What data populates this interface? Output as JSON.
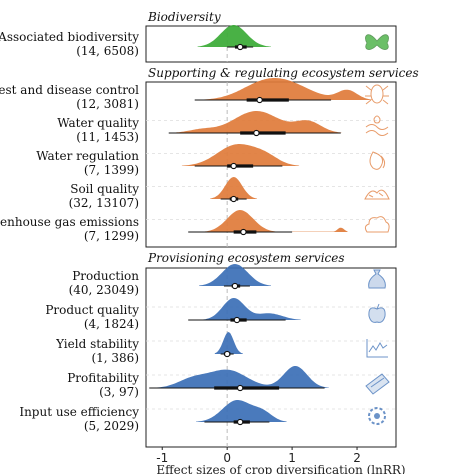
{
  "chart_data": {
    "type": "density",
    "xlabel": "Effect sizes of crop diversification (lnRR)",
    "xticks": [
      "-1",
      "0",
      "1",
      "2"
    ],
    "xtick_values": [
      -1,
      0,
      1,
      2
    ],
    "xlim": [
      -1.25,
      2.6
    ],
    "reference_line": 0,
    "colors": {
      "biodiversity": "#3aaa35",
      "supporting": "#e07b39",
      "provisioning": "#3b6fb6"
    },
    "panels": [
      {
        "title": "Biodiversity",
        "color": "biodiversity",
        "rows": [
          {
            "label": "Associated biodiversity",
            "count": "(14, 6508)",
            "icon": "butterfly-icon",
            "estimate": 0.2,
            "ci_thick": [
              0.12,
              0.3
            ],
            "ci_thin": [
              0.0,
              0.4
            ],
            "density": [
              [
                0.1,
                0.2,
                1.0
              ]
            ]
          }
        ]
      },
      {
        "title": "Supporting & regulating ecosystem services",
        "color": "supporting",
        "rows": [
          {
            "label": "Pest and disease control",
            "count": "(12, 3081)",
            "icon": "bug-icon",
            "estimate": 0.5,
            "ci_thick": [
              0.3,
              0.95
            ],
            "ci_thin": [
              -0.5,
              1.6
            ],
            "density": [
              [
                0.55,
                0.35,
                0.7
              ],
              [
                1.0,
                0.35,
                0.55
              ],
              [
                1.85,
                0.15,
                0.45
              ]
            ]
          },
          {
            "label": "Water quality",
            "count": "(11, 1453)",
            "icon": "water-icon",
            "estimate": 0.45,
            "ci_thick": [
              0.2,
              0.9
            ],
            "ci_thin": [
              -0.9,
              1.75
            ],
            "density": [
              [
                0.45,
                0.35,
                1.0
              ],
              [
                1.25,
                0.2,
                0.5
              ],
              [
                -0.4,
                0.2,
                0.15
              ]
            ]
          },
          {
            "label": "Water regulation",
            "count": "(7, 1399)",
            "icon": "droplet-icon",
            "estimate": 0.1,
            "ci_thick": [
              0.0,
              0.4
            ],
            "ci_thin": [
              -0.5,
              0.85
            ],
            "density": [
              [
                0.15,
                0.3,
                1.0
              ],
              [
                0.6,
                0.2,
                0.35
              ]
            ]
          },
          {
            "label": "Soil quality",
            "count": "(32, 13107)",
            "icon": "soil-icon",
            "estimate": 0.1,
            "ci_thick": [
              0.04,
              0.17
            ],
            "ci_thin": [
              -0.1,
              0.3
            ],
            "density": [
              [
                0.1,
                0.13,
                1.0
              ]
            ]
          },
          {
            "label": "Greenhouse gas emissions",
            "count": "(7, 1299)",
            "icon": "cloud-icon",
            "estimate": 0.25,
            "ci_thick": [
              0.1,
              0.45
            ],
            "ci_thin": [
              -0.6,
              1.0
            ],
            "density": [
              [
                0.2,
                0.2,
                1.0
              ],
              [
                1.75,
                0.05,
                0.2
              ]
            ]
          }
        ]
      },
      {
        "title": "Provisioning ecosystem services",
        "color": "provisioning",
        "rows": [
          {
            "label": "Production",
            "count": "(40, 23049)",
            "icon": "money-bag-icon",
            "estimate": 0.12,
            "ci_thick": [
              0.07,
              0.2
            ],
            "ci_thin": [
              -0.05,
              0.35
            ],
            "density": [
              [
                0.12,
                0.2,
                1.0
              ]
            ]
          },
          {
            "label": "Product quality",
            "count": "(4, 1824)",
            "icon": "apple-icon",
            "estimate": 0.15,
            "ci_thick": [
              0.05,
              0.3
            ],
            "ci_thin": [
              -0.6,
              0.9
            ],
            "density": [
              [
                0.1,
                0.17,
                1.0
              ],
              [
                0.65,
                0.2,
                0.3
              ]
            ]
          },
          {
            "label": "Yield stability",
            "count": "(1, 386)",
            "icon": "line-chart-icon",
            "estimate": 0.0,
            "ci_thick": [
              -0.05,
              0.05
            ],
            "ci_thin": [
              -0.1,
              0.1
            ],
            "density": [
              [
                0.02,
                0.08,
                1.0
              ]
            ]
          },
          {
            "label": "Profitability",
            "count": "(3, 97)",
            "icon": "banknote-icon",
            "estimate": 0.2,
            "ci_thick": [
              -0.2,
              0.8
            ],
            "ci_thin": [
              -1.2,
              1.5
            ],
            "density": [
              [
                0.0,
                0.3,
                0.45
              ],
              [
                1.05,
                0.18,
                0.55
              ],
              [
                -0.55,
                0.22,
                0.2
              ]
            ]
          },
          {
            "label": "Input use efficiency",
            "count": "(5, 2029)",
            "icon": "gear-icon",
            "estimate": 0.2,
            "ci_thick": [
              0.1,
              0.35
            ],
            "ci_thin": [
              -0.35,
              0.65
            ],
            "density": [
              [
                0.15,
                0.22,
                1.0
              ],
              [
                0.55,
                0.15,
                0.4
              ]
            ]
          }
        ]
      }
    ]
  }
}
